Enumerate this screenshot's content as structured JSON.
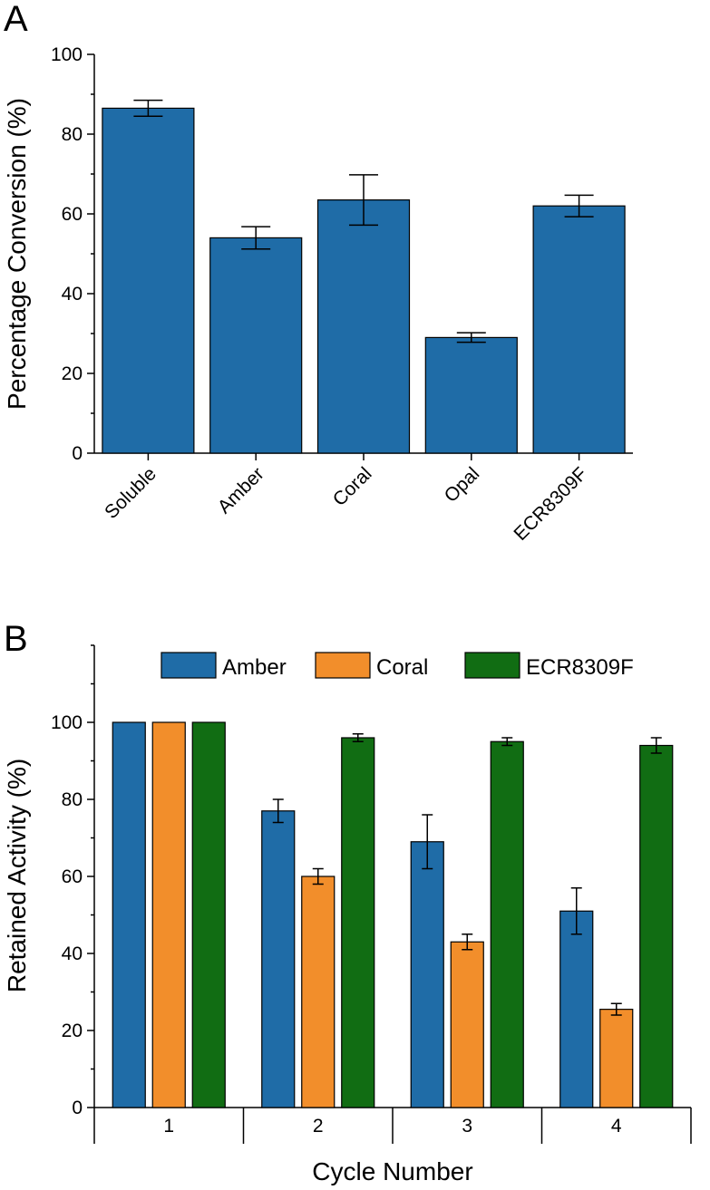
{
  "panel_labels": {
    "a": "A",
    "b": "B"
  },
  "colors": {
    "amber": "#1f6ca7",
    "coral": "#f28e2b",
    "ecr": "#116d13",
    "axis": "#000000"
  },
  "chart_data": [
    {
      "panel": "A",
      "type": "bar",
      "ylabel": "Percentage Conversion (%)",
      "xlabel": "",
      "ylim": [
        0,
        100
      ],
      "yticks": [
        0,
        20,
        40,
        60,
        80,
        100
      ],
      "grid": false,
      "categories": [
        "Soluble",
        "Amber",
        "Coral",
        "Opal",
        "ECR8309F"
      ],
      "values": [
        86.5,
        54,
        63.5,
        29,
        62
      ],
      "errors": [
        2,
        2.8,
        6.3,
        1.2,
        2.7
      ]
    },
    {
      "panel": "B",
      "type": "bar",
      "ylabel": "Retained Activity (%)",
      "xlabel": "Cycle Number",
      "ylim": [
        0,
        120
      ],
      "yticks": [
        0,
        20,
        40,
        60,
        80,
        100
      ],
      "grid": false,
      "legend_position": "top",
      "categories": [
        "1",
        "2",
        "3",
        "4"
      ],
      "series": [
        {
          "name": "Amber",
          "values": [
            100,
            77,
            69,
            51
          ],
          "errors": [
            0,
            3,
            7,
            6
          ]
        },
        {
          "name": "Coral",
          "values": [
            100,
            60,
            43,
            25.5
          ],
          "errors": [
            0,
            2,
            2,
            1.5
          ]
        },
        {
          "name": "ECR8309F",
          "values": [
            100,
            96,
            95,
            94
          ],
          "errors": [
            0,
            1,
            1,
            2
          ]
        }
      ]
    }
  ]
}
